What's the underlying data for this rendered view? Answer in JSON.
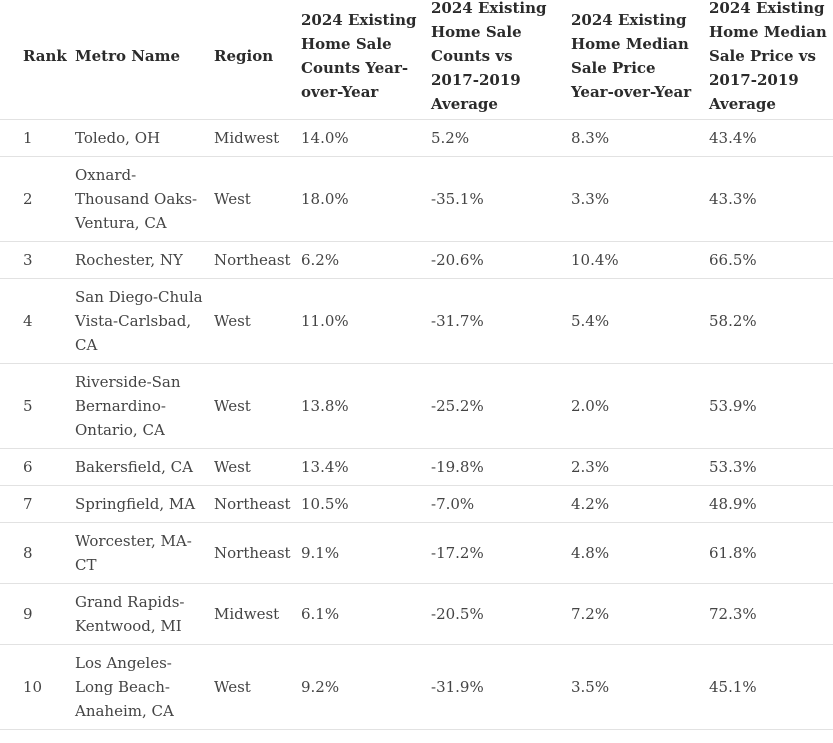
{
  "table": {
    "headers": {
      "rank": "Rank",
      "metro": "Metro Name",
      "region": "Region",
      "counts_yoy": "2024 Existing Home Sale Counts Year-over-Year",
      "counts_vs_avg": "2024 Existing Home Sale Counts vs 2017-2019 Average",
      "price_yoy": "2024 Existing Home Median Sale Price Year-over-Year",
      "price_vs_avg": "2024 Existing Home Median Sale Price vs 2017-2019 Average"
    },
    "rows": [
      {
        "rank": "1",
        "metro": "Toledo, OH",
        "region": "Midwest",
        "counts_yoy": "14.0%",
        "counts_vs_avg": "5.2%",
        "price_yoy": "8.3%",
        "price_vs_avg": "43.4%"
      },
      {
        "rank": "2",
        "metro": "Oxnard-Thousand Oaks-Ventura, CA",
        "region": "West",
        "counts_yoy": "18.0%",
        "counts_vs_avg": "-35.1%",
        "price_yoy": "3.3%",
        "price_vs_avg": "43.3%"
      },
      {
        "rank": "3",
        "metro": "Rochester, NY",
        "region": "Northeast",
        "counts_yoy": "6.2%",
        "counts_vs_avg": "-20.6%",
        "price_yoy": "10.4%",
        "price_vs_avg": "66.5%"
      },
      {
        "rank": "4",
        "metro": "San Diego-Chula Vista-Carlsbad, CA",
        "region": "West",
        "counts_yoy": "11.0%",
        "counts_vs_avg": "-31.7%",
        "price_yoy": "5.4%",
        "price_vs_avg": "58.2%"
      },
      {
        "rank": "5",
        "metro": "Riverside-San Bernardino-Ontario, CA",
        "region": "West",
        "counts_yoy": "13.8%",
        "counts_vs_avg": "-25.2%",
        "price_yoy": "2.0%",
        "price_vs_avg": "53.9%"
      },
      {
        "rank": "6",
        "metro": "Bakersfield, CA",
        "region": "West",
        "counts_yoy": "13.4%",
        "counts_vs_avg": "-19.8%",
        "price_yoy": "2.3%",
        "price_vs_avg": "53.3%"
      },
      {
        "rank": "7",
        "metro": "Springfield, MA",
        "region": "Northeast",
        "counts_yoy": "10.5%",
        "counts_vs_avg": "-7.0%",
        "price_yoy": "4.2%",
        "price_vs_avg": "48.9%"
      },
      {
        "rank": "8",
        "metro": "Worcester, MA-CT",
        "region": "Northeast",
        "counts_yoy": "9.1%",
        "counts_vs_avg": "-17.2%",
        "price_yoy": "4.8%",
        "price_vs_avg": "61.8%"
      },
      {
        "rank": "9",
        "metro": "Grand Rapids-Kentwood, MI",
        "region": "Midwest",
        "counts_yoy": "6.1%",
        "counts_vs_avg": "-20.5%",
        "price_yoy": "7.2%",
        "price_vs_avg": "72.3%"
      },
      {
        "rank": "10",
        "metro": "Los Angeles-Long Beach-Anaheim, CA",
        "region": "West",
        "counts_yoy": "9.2%",
        "counts_vs_avg": "-31.9%",
        "price_yoy": "3.5%",
        "price_vs_avg": "45.1%"
      }
    ]
  }
}
